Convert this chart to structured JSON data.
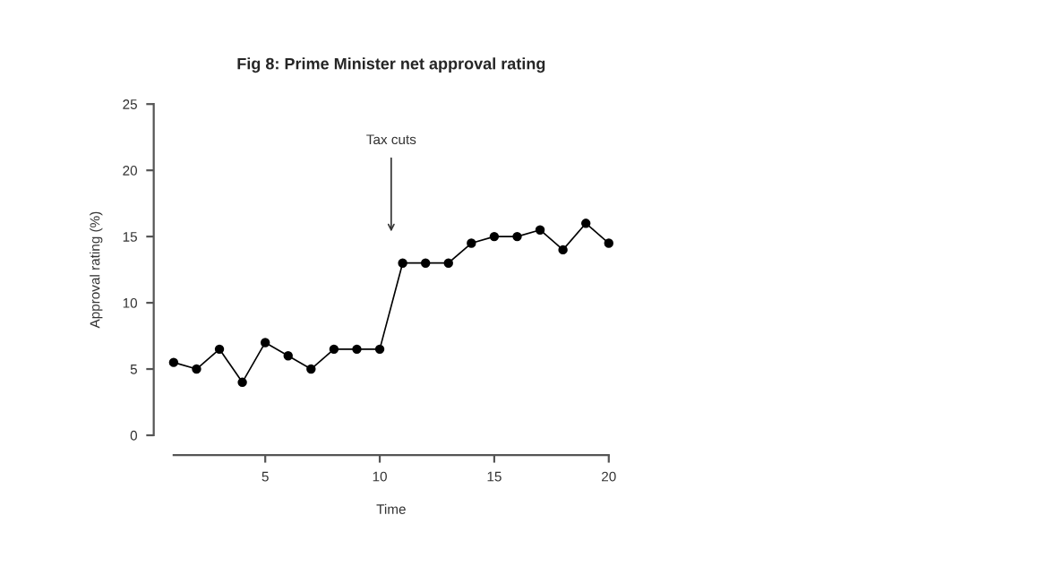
{
  "chart_data": {
    "type": "line",
    "title": "Fig 8: Prime Minister net approval rating",
    "xlabel": "Time",
    "ylabel": "Approval rating (%)",
    "x": [
      1,
      2,
      3,
      4,
      5,
      6,
      7,
      8,
      9,
      10,
      11,
      12,
      13,
      14,
      15,
      16,
      17,
      18,
      19,
      20
    ],
    "series": [
      {
        "color": "#000000",
        "values": [
          5.5,
          5,
          6.5,
          4,
          7,
          6,
          5,
          6.5,
          6.5,
          6.5,
          13,
          13,
          13,
          14.5,
          15,
          15,
          15.5,
          14,
          16,
          14.5
        ]
      }
    ],
    "xlim": [
      1,
      20
    ],
    "ylim": [
      0,
      25
    ],
    "xticks": [
      5,
      10,
      15,
      20
    ],
    "yticks": [
      0,
      5,
      10,
      15,
      20,
      25
    ],
    "marker": "circle",
    "line_style": "solid",
    "grid": false,
    "legend": false,
    "annotations": [
      "Tax cuts"
    ]
  }
}
